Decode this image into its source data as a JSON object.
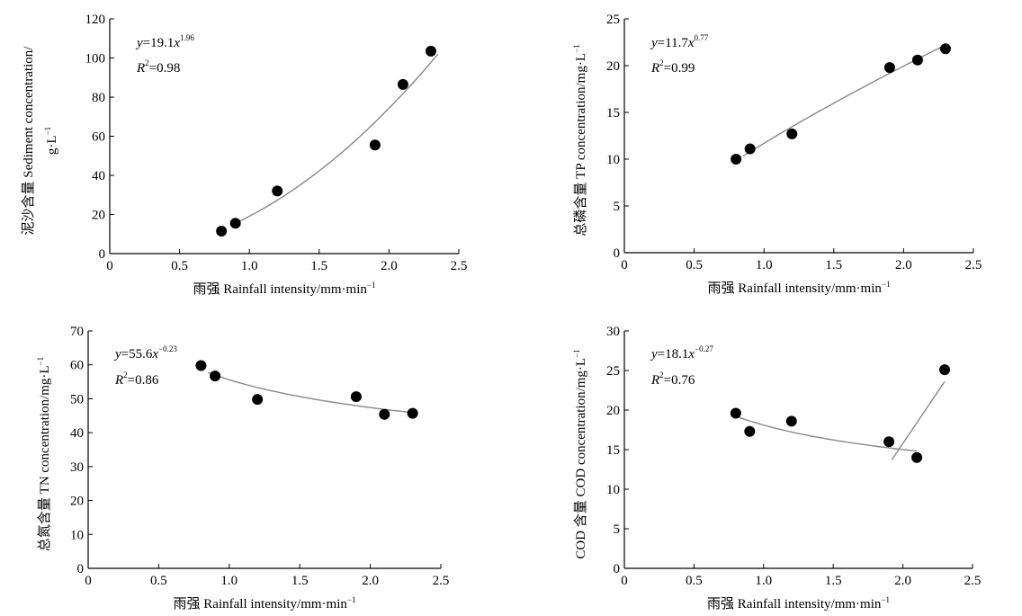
{
  "figure": {
    "panels": [
      {
        "id": "sediment",
        "ylabel_line1": "泥沙含量 Sediment concentration/",
        "ylabel_line2": "g·L",
        "ylabel_line2_sup": "−1",
        "xlabel": "雨强 Rainfall intensity/mm·min",
        "xlabel_sup": "−1",
        "equation": {
          "prefix": "y",
          "body": "=19.1",
          "var": "x",
          "exp": "1.96"
        },
        "r2": {
          "prefix": "R",
          "sup": "2",
          "body": "=0.98"
        }
      },
      {
        "id": "tp",
        "ylabel_line1": "总磷含量 TP concentration/mg·L",
        "ylabel_line1_sup": "−1",
        "xlabel": "雨强 Rainfall intensity/mm·min",
        "xlabel_sup": "−1",
        "equation": {
          "prefix": "y",
          "body": "=11.7",
          "var": "x",
          "exp": "0.77"
        },
        "r2": {
          "prefix": "R",
          "sup": "2",
          "body": "=0.99"
        }
      },
      {
        "id": "tn",
        "ylabel_line1": "总氮含量 TN concentration/mg·L",
        "ylabel_line1_sup": "−1",
        "xlabel": "雨强 Rainfall intensity/mm·min",
        "xlabel_sup": "−1",
        "equation": {
          "prefix": "y",
          "body": "=55.6",
          "var": "x",
          "exp": "−0.23"
        },
        "r2": {
          "prefix": "R",
          "sup": "2",
          "body": "=0.86"
        }
      },
      {
        "id": "cod",
        "ylabel_line1": "COD 含量 COD concentration/mg·L",
        "ylabel_line1_sup": "−1",
        "xlabel": "雨强 Rainfall intensity/mm·min",
        "xlabel_sup": "−1",
        "equation": {
          "prefix": "y",
          "body": "=18.1",
          "var": "x",
          "exp": "−0.27"
        },
        "r2": {
          "prefix": "R",
          "sup": "2",
          "body": "=0.76"
        }
      }
    ]
  },
  "chart_data": [
    {
      "type": "scatter",
      "x": [
        0.8,
        0.9,
        1.2,
        1.9,
        2.1,
        2.3
      ],
      "y": [
        11.5,
        15.5,
        32,
        55.5,
        86.5,
        103.5
      ],
      "xlim": [
        0,
        2.5
      ],
      "ylim": [
        0,
        120
      ],
      "xticks": [
        "0",
        "0.5",
        "1.0",
        "1.5",
        "2.0",
        "2.5"
      ],
      "yticks": [
        "0",
        "20",
        "40",
        "60",
        "80",
        "100",
        "120"
      ],
      "fit": {
        "kind": "power",
        "a": 19.1,
        "b": 1.96,
        "x_range": [
          0.9,
          2.35
        ]
      },
      "marker_color": "#000000",
      "fit_color": "#888888"
    },
    {
      "type": "scatter",
      "x": [
        0.8,
        0.9,
        1.2,
        1.9,
        2.1,
        2.3
      ],
      "y": [
        10,
        11.1,
        12.7,
        19.8,
        20.6,
        21.8
      ],
      "xlim": [
        0,
        2.5
      ],
      "ylim": [
        0,
        25
      ],
      "xticks": [
        "0",
        "0.5",
        "1.0",
        "1.5",
        "2.0",
        "2.5"
      ],
      "yticks": [
        "0",
        "5",
        "10",
        "15",
        "20",
        "25"
      ],
      "fit": {
        "kind": "power",
        "a": 11.7,
        "b": 0.77,
        "x_range": [
          0.85,
          2.3
        ]
      },
      "marker_color": "#000000",
      "fit_color": "#888888"
    },
    {
      "type": "scatter",
      "x": [
        0.8,
        0.9,
        1.2,
        1.9,
        2.1,
        2.3
      ],
      "y": [
        59.8,
        56.7,
        49.8,
        50.6,
        45.4,
        45.7
      ],
      "xlim": [
        0,
        2.5
      ],
      "ylim": [
        0,
        70
      ],
      "xticks": [
        "0",
        "0.5",
        "1.0",
        "1.5",
        "2.0",
        "2.5"
      ],
      "yticks": [
        "0",
        "10",
        "20",
        "30",
        "40",
        "50",
        "60",
        "70"
      ],
      "fit": {
        "kind": "power",
        "a": 55.6,
        "b": -0.23,
        "x_range": [
          0.85,
          2.3
        ]
      },
      "marker_color": "#000000",
      "fit_color": "#888888"
    },
    {
      "type": "scatter",
      "x": [
        0.8,
        0.9,
        1.2,
        1.9,
        2.1,
        2.3
      ],
      "y": [
        19.6,
        17.3,
        18.6,
        16.0,
        14.0,
        25.1
      ],
      "xlim": [
        0,
        2.5
      ],
      "ylim": [
        0,
        30
      ],
      "xticks": [
        "0",
        "0.5",
        "1.0",
        "1.5",
        "2.0",
        "2.5"
      ],
      "yticks": [
        "0",
        "5",
        "10",
        "15",
        "20",
        "25",
        "30"
      ],
      "fit": {
        "kind": "power",
        "a": 18.1,
        "b": -0.27,
        "x_range": [
          0.8,
          2.1
        ]
      },
      "extra_line": {
        "x": [
          1.92,
          2.3
        ],
        "y": [
          13.7,
          23.6
        ]
      },
      "marker_color": "#000000",
      "fit_color": "#888888"
    }
  ]
}
